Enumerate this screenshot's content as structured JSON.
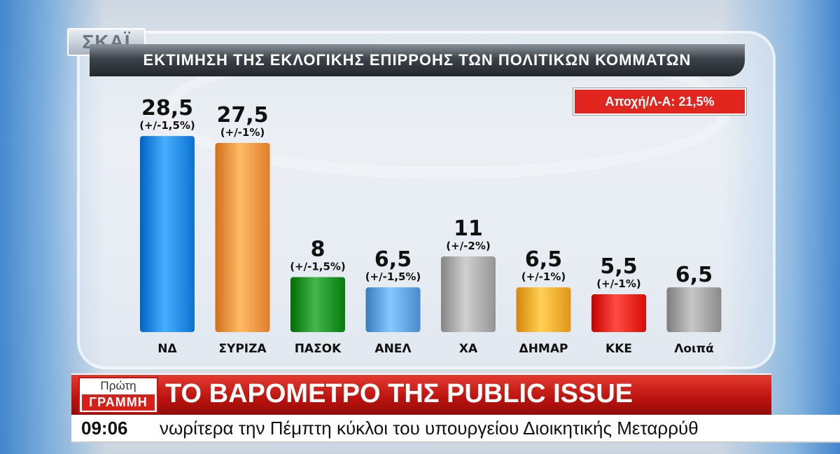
{
  "channel": {
    "logo": "ΣΚΑΪ"
  },
  "chart_title": "ΕΚΤΙΜΗΣΗ ΤΗΣ ΕΚΛΟΓΙΚΗΣ ΕΠΙΡΡΟΗΣ ΤΩΝ ΠΟΛΙΤΙΚΩΝ ΚΟΜΜΑΤΩΝ",
  "abstention_label": "Αποχή/Λ-Α: 21,5%",
  "chart_data": {
    "type": "bar",
    "categories": [
      "ΝΔ",
      "ΣΥΡΙΖΑ",
      "ΠΑΣΟΚ",
      "ΑΝΕΛ",
      "ΧΑ",
      "ΔΗΜΑΡ",
      "ΚΚΕ",
      "Λοιπά"
    ],
    "values": [
      28.5,
      27.5,
      8,
      6.5,
      11,
      6.5,
      5.5,
      6.5
    ],
    "value_labels": [
      "28,5",
      "27,5",
      "8",
      "6,5",
      "11",
      "6,5",
      "5,5",
      "6,5"
    ],
    "margins": [
      "(+/-1,5%)",
      "(+/-1%)",
      "(+/-1,5%)",
      "(+/-1,5%)",
      "(+/-2%)",
      "(+/-1%)",
      "(+/-1%)",
      ""
    ],
    "colors": [
      "#1f86e6",
      "#f5923e",
      "#1c8f24",
      "#5d9fe0",
      "#a8a8a8",
      "#f6a92d",
      "#e8231b",
      "#9f9f9f"
    ],
    "title": "ΕΚΤΙΜΗΣΗ ΤΗΣ ΕΚΛΟΓΙΚΗΣ ΕΠΙΡΡΟΗΣ ΤΩΝ ΠΟΛΙΤΙΚΩΝ ΚΟΜΜΑΤΩΝ",
    "xlabel": "",
    "ylabel": "",
    "ylim": [
      0,
      30
    ],
    "grid": false,
    "legend": "none"
  },
  "lower_third": {
    "badge_top": "Πρώτη",
    "badge_bottom": "ΓΡΑΜΜΗ",
    "headline": "ΤΟ ΒΑΡΟΜΕΤΡΟ ΤΗΣ PUBLIC ISSUE",
    "time": "09:06",
    "ticker": "νωρίτερα την Πέμπτη κύκλοι του υπουργείου Διοικητικής Μεταρρύθ"
  }
}
